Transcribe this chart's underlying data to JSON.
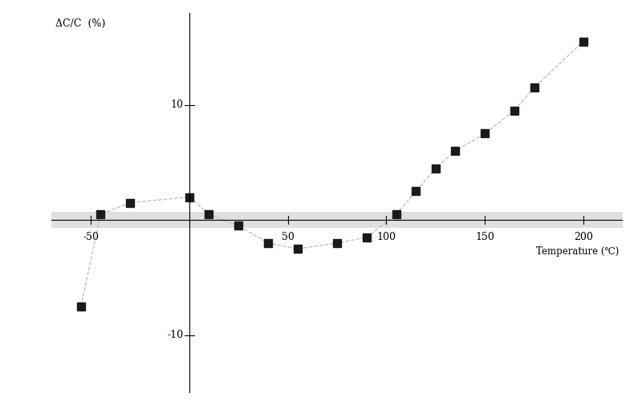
{
  "x": [
    -55,
    -45,
    -30,
    0,
    10,
    25,
    40,
    55,
    75,
    90,
    105,
    115,
    125,
    135,
    150,
    165,
    175,
    200
  ],
  "y": [
    -7.5,
    0.5,
    1.5,
    2.0,
    0.5,
    -0.5,
    -2.0,
    -2.5,
    -2.0,
    -1.5,
    0.5,
    2.5,
    4.5,
    6.0,
    7.5,
    9.5,
    11.5,
    15.5
  ],
  "ylabel": "ΔC/C  (%)",
  "xlabel": "Temperature (℃)",
  "line_color": "#bbbbbb",
  "marker_color": "#1a1a1a",
  "background_color": "#ffffff",
  "yticks": [
    -10,
    10
  ],
  "xticks": [
    -50,
    0,
    50,
    100,
    150,
    200
  ],
  "ylim": [
    -15,
    18
  ],
  "xlim": [
    -70,
    220
  ],
  "zero_band_color": "#c8c8c8",
  "zero_band_alpha": 0.55,
  "zero_band_ymin": -0.7,
  "zero_band_ymax": 0.7
}
